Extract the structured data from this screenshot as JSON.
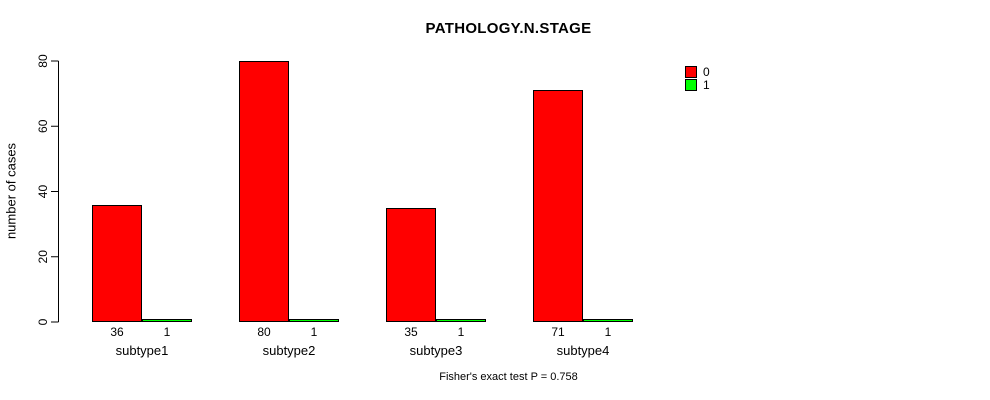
{
  "title": "PATHOLOGY.N.STAGE",
  "footer": "Fisher's exact test P = 0.758",
  "legend": {
    "items": [
      {
        "label": "0",
        "color": "#ff0000"
      },
      {
        "label": "1",
        "color": "#00ff00"
      }
    ]
  },
  "chart_data": {
    "type": "bar",
    "title": "PATHOLOGY.N.STAGE",
    "categories": [
      "subtype1",
      "subtype2",
      "subtype3",
      "subtype4"
    ],
    "series": [
      {
        "name": "0",
        "color": "#ff0000",
        "values": [
          36,
          80,
          35,
          71
        ]
      },
      {
        "name": "1",
        "color": "#00ff00",
        "values": [
          1,
          1,
          1,
          1
        ]
      }
    ],
    "xlabel": "",
    "ylabel": "number of cases",
    "ylim": [
      0,
      80
    ],
    "yticks": [
      0,
      20,
      40,
      60,
      80
    ],
    "grid": false,
    "legend_position": "right",
    "bar_value_labels": true,
    "annotation": "Fisher's exact test P = 0.758",
    "colors": {
      "background": "#ffffff",
      "bar_border": "#000000",
      "text": "#000000"
    }
  }
}
